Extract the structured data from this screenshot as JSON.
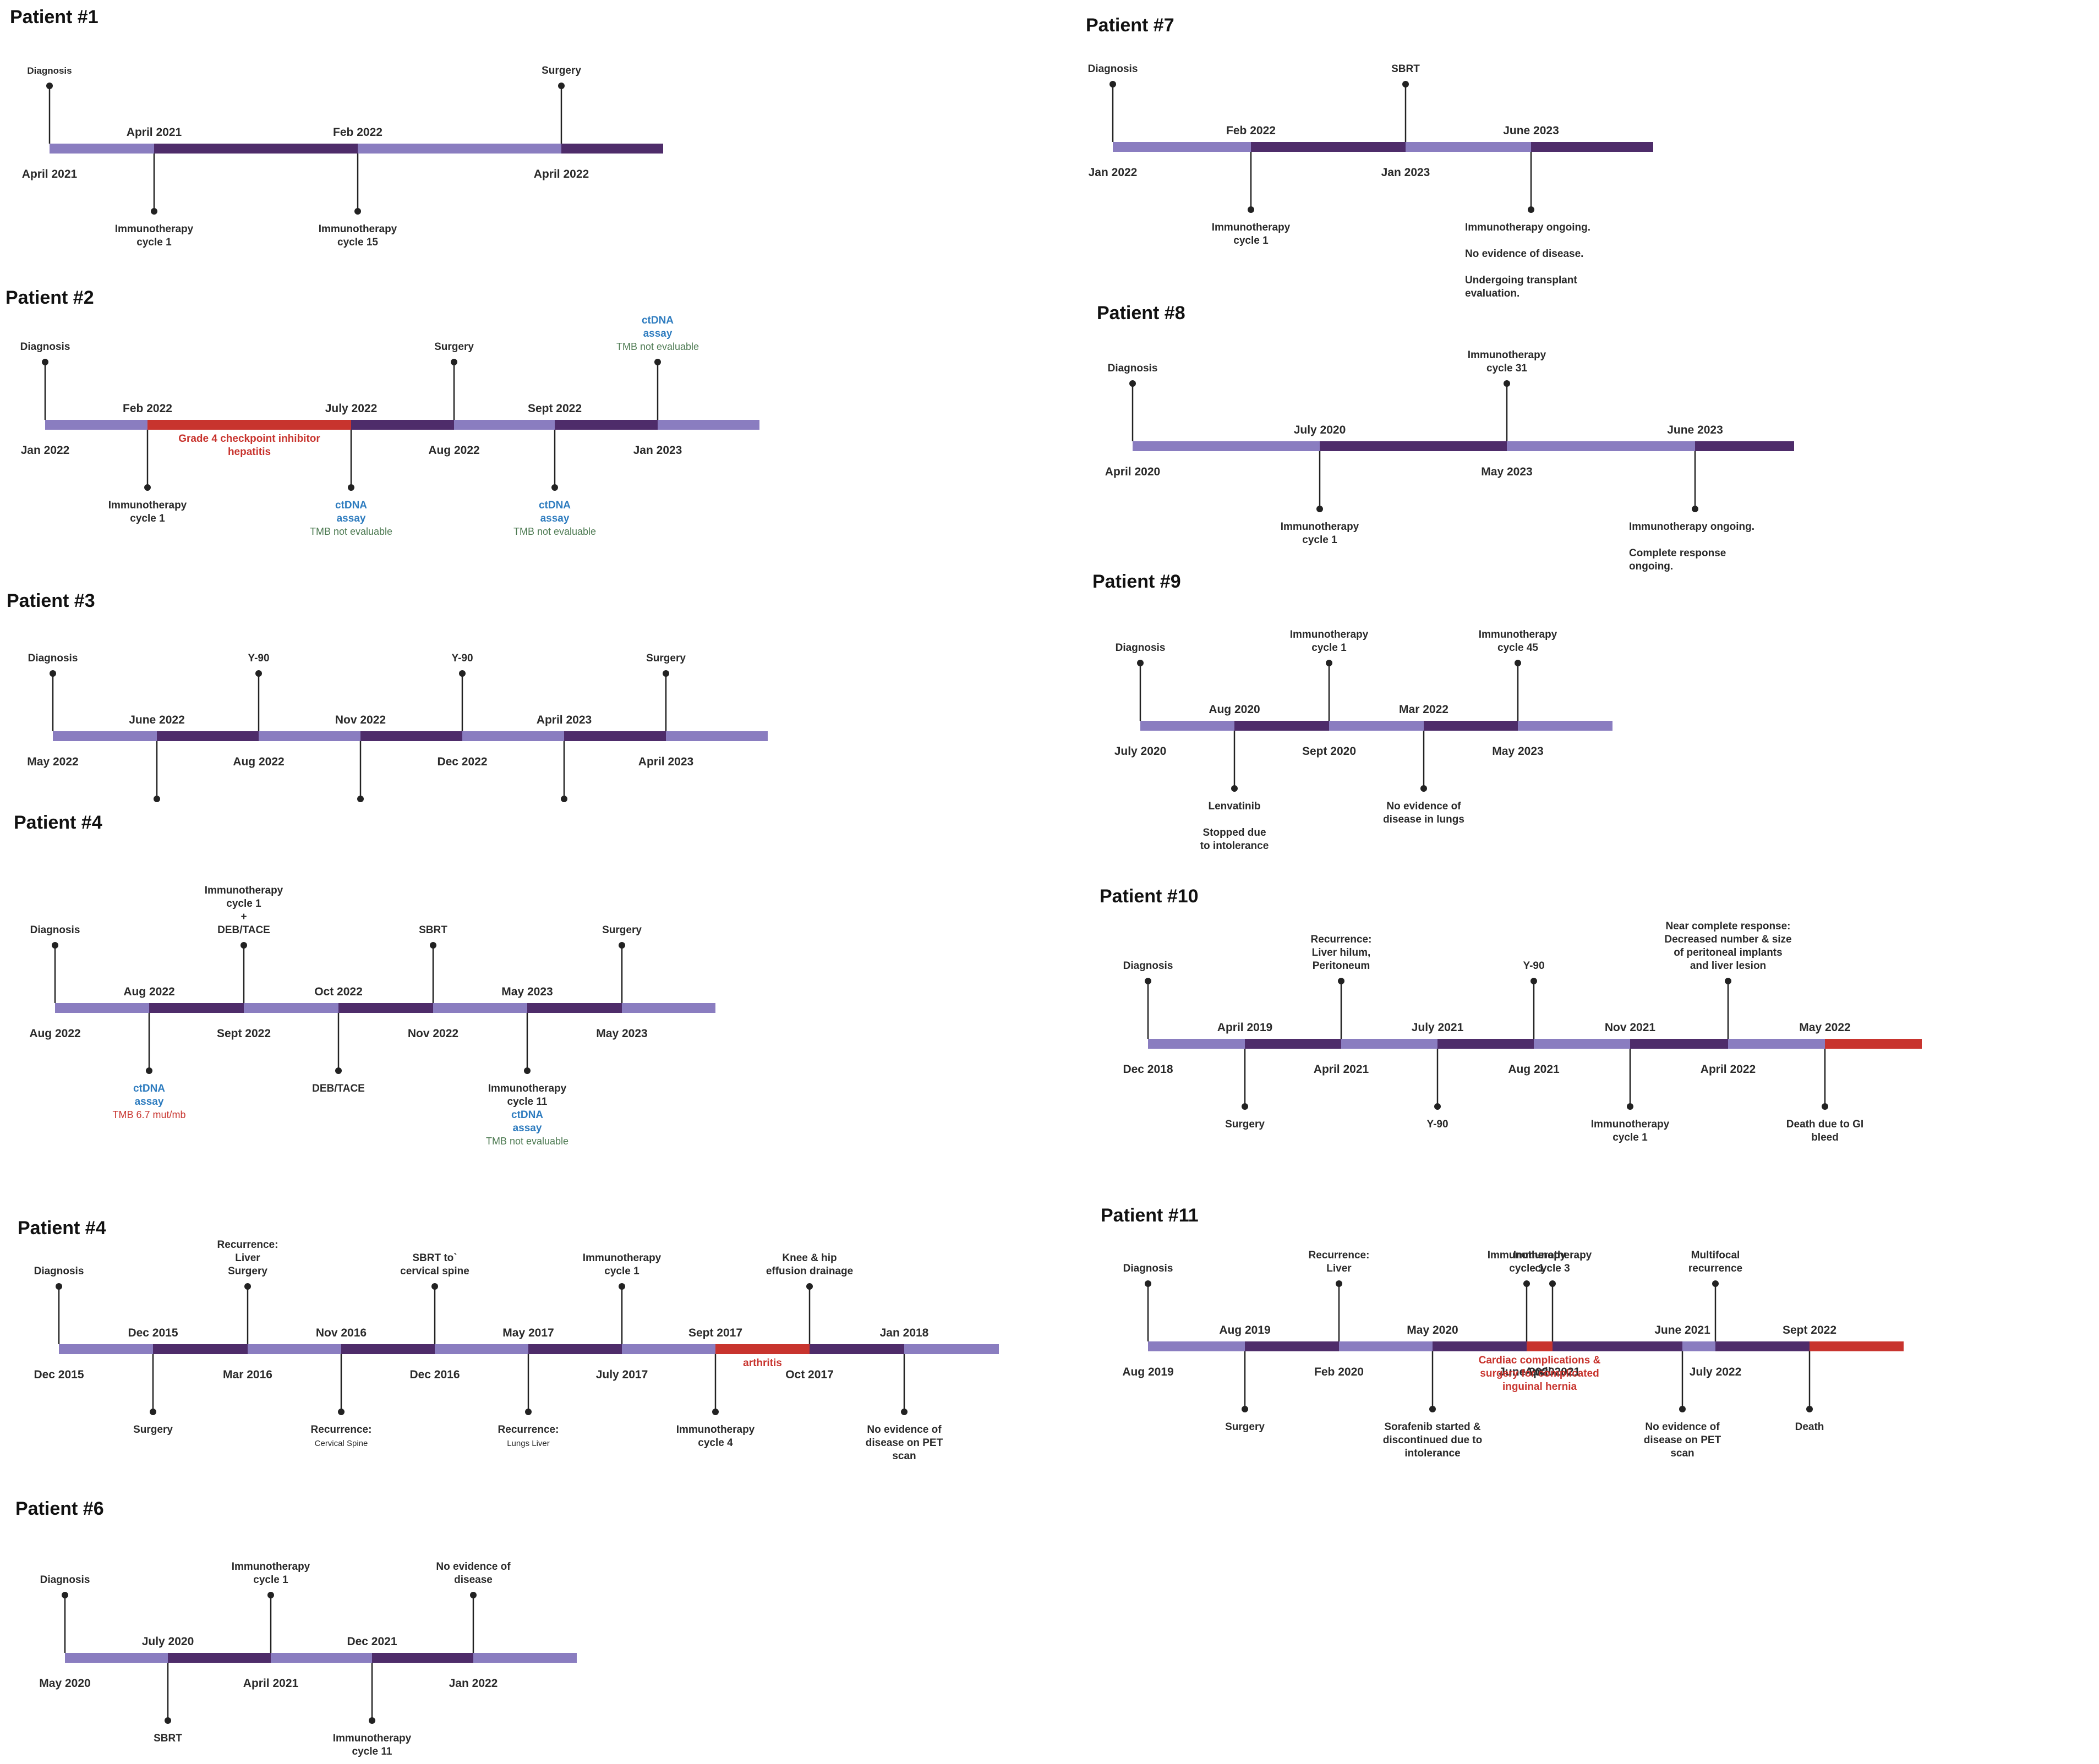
{
  "colors": {
    "bar_light": "#8a7dc0",
    "bar_dark": "#4e2c6a",
    "bar_red": "#c8342e",
    "text": "#2a2a2a",
    "title": "#111111",
    "blue": "#2e7cbf",
    "red": "#c8342e",
    "green": "#4d7a52"
  },
  "patients": [
    {
      "title": "Patient #1",
      "segments": [
        "light",
        "dark",
        "light",
        "dark"
      ],
      "markers": [
        {
          "side": "up",
          "label": [
            "Diagnosis"
          ],
          "small": true
        },
        {
          "side": "down",
          "label": [
            "Immunotherapy",
            "cycle 1"
          ]
        },
        {
          "side": "down",
          "label": [
            "Immunotherapy",
            "cycle 15"
          ]
        },
        {
          "side": "up",
          "label": [
            "Surgery"
          ]
        }
      ],
      "dates": [
        {
          "pos": "below",
          "text": "April 2021"
        },
        {
          "pos": "above",
          "text": "April 2021"
        },
        {
          "pos": "above",
          "text": "Feb 2022"
        },
        {
          "pos": "below",
          "text": "April 2022"
        }
      ],
      "notes": []
    },
    {
      "title": "Patient #2",
      "segments": [
        "light",
        "red",
        "dark",
        "light",
        "dark",
        "light"
      ],
      "markers": [
        {
          "side": "up",
          "label": [
            "Diagnosis"
          ]
        },
        {
          "side": "down",
          "label": [
            "Immunotherapy",
            "cycle 1"
          ]
        },
        {
          "side": "down",
          "label": [
            "ctDNA",
            "assay"
          ],
          "color": "blue",
          "extra": {
            "text": "TMB not evaluable",
            "color": "green"
          }
        },
        {
          "side": "up",
          "label": [
            "Surgery"
          ]
        },
        {
          "side": "down",
          "label": [
            "ctDNA",
            "assay"
          ],
          "color": "blue",
          "extra": {
            "text": "TMB not evaluable",
            "color": "green"
          }
        },
        {
          "side": "up",
          "label": [
            "ctDNA",
            "assay"
          ],
          "color": "blue",
          "extra": {
            "text": "TMB not evaluable",
            "color": "green"
          }
        }
      ],
      "dates": [
        {
          "pos": "below",
          "text": "Jan 2022"
        },
        {
          "pos": "above",
          "text": "Feb 2022"
        },
        {
          "pos": "above",
          "text": "July 2022"
        },
        {
          "pos": "below",
          "text": "Aug 2022"
        },
        {
          "pos": "above",
          "text": "Sept 2022"
        },
        {
          "pos": "below",
          "text": "Jan 2023"
        }
      ],
      "notes": [
        {
          "seg": 1,
          "lines": [
            "Grade 4 checkpoint inhibitor",
            "hepatitis"
          ],
          "color": "red"
        }
      ]
    },
    {
      "title": "Patient #3",
      "segments": [
        "light",
        "dark",
        "light",
        "dark",
        "light",
        "dark",
        "light"
      ],
      "markers": [
        {
          "side": "up",
          "label": [
            "Diagnosis"
          ]
        },
        {
          "side": "down",
          "label": []
        },
        {
          "side": "up",
          "label": [
            "Y-90"
          ]
        },
        {
          "side": "down",
          "label": []
        },
        {
          "side": "up",
          "label": [
            "Y-90"
          ]
        },
        {
          "side": "down",
          "label": []
        },
        {
          "side": "up",
          "label": [
            "Surgery"
          ]
        }
      ],
      "dates": [
        {
          "pos": "below",
          "text": "May 2022"
        },
        {
          "pos": "above",
          "text": "June 2022"
        },
        {
          "pos": "below",
          "text": "Aug 2022"
        },
        {
          "pos": "above",
          "text": "Nov 2022"
        },
        {
          "pos": "below",
          "text": "Dec 2022"
        },
        {
          "pos": "above",
          "text": "April 2023"
        },
        {
          "pos": "below",
          "text": "April 2023"
        }
      ],
      "notes": []
    },
    {
      "title": "Patient #4",
      "segments": [
        "light",
        "dark",
        "light",
        "dark",
        "light",
        "dark",
        "light"
      ],
      "markers": [
        {
          "side": "up",
          "label": [
            "Diagnosis"
          ]
        },
        {
          "side": "down",
          "label": [
            "ctDNA",
            "assay"
          ],
          "color": "blue",
          "extra": {
            "text": "TMB 6.7 mut/mb",
            "color": "red"
          }
        },
        {
          "side": "up",
          "label": [
            "Immunotherapy",
            "cycle 1",
            "+",
            "DEB/TACE"
          ]
        },
        {
          "side": "down",
          "label": [
            "DEB/TACE"
          ]
        },
        {
          "side": "up",
          "label": [
            "SBRT"
          ]
        },
        {
          "side": "down",
          "label": [
            "Immunotherapy",
            "cycle 11"
          ],
          "sub": {
            "lines": [
              "ctDNA",
              "assay"
            ],
            "color": "blue",
            "extra": {
              "text": "TMB not evaluable",
              "color": "green"
            }
          }
        },
        {
          "side": "up",
          "label": [
            "Surgery"
          ]
        }
      ],
      "dates": [
        {
          "pos": "below",
          "text": "Aug 2022"
        },
        {
          "pos": "above",
          "text": "Aug 2022"
        },
        {
          "pos": "below",
          "text": "Sept 2022"
        },
        {
          "pos": "above",
          "text": "Oct 2022"
        },
        {
          "pos": "below",
          "text": "Nov 2022"
        },
        {
          "pos": "above",
          "text": "May 2023"
        },
        {
          "pos": "below",
          "text": "May 2023"
        }
      ],
      "notes": []
    },
    {
      "title": "Patient #4",
      "segments": [
        "light",
        "dark",
        "light",
        "dark",
        "light",
        "dark",
        "light",
        "red",
        "dark",
        "light"
      ],
      "markers": [
        {
          "side": "up",
          "label": [
            "Diagnosis"
          ]
        },
        {
          "side": "down",
          "label": [
            "Surgery"
          ]
        },
        {
          "side": "up",
          "label": [
            "Recurrence:",
            "Liver",
            "Surgery"
          ]
        },
        {
          "side": "down",
          "label": [
            "Recurrence:"
          ],
          "tiny": [
            "Cervical Spine"
          ]
        },
        {
          "side": "up",
          "label": [
            "SBRT to`",
            "cervical spine"
          ]
        },
        {
          "side": "down",
          "label": [
            "Recurrence:"
          ],
          "tiny": [
            "Lungs          Liver"
          ]
        },
        {
          "side": "up",
          "label": [
            "Immunotherapy",
            "cycle 1"
          ]
        },
        {
          "side": "down",
          "label": [
            "Immunotherapy",
            "cycle 4"
          ]
        },
        {
          "side": "up",
          "label": [
            "Knee & hip",
            "effusion drainage"
          ]
        },
        {
          "side": "down",
          "label": [
            "No evidence of",
            "disease on PET",
            "scan"
          ]
        }
      ],
      "dates": [
        {
          "pos": "below",
          "text": "Dec 2015"
        },
        {
          "pos": "above",
          "text": "Dec 2015"
        },
        {
          "pos": "below",
          "text": "Mar 2016"
        },
        {
          "pos": "above",
          "text": "Nov 2016"
        },
        {
          "pos": "below",
          "text": "Dec 2016"
        },
        {
          "pos": "above",
          "text": "May 2017"
        },
        {
          "pos": "below",
          "text": "July 2017"
        },
        {
          "pos": "above",
          "text": "Sept 2017"
        },
        {
          "pos": "below",
          "text": "Oct 2017"
        },
        {
          "pos": "above",
          "text": "Jan 2018"
        }
      ],
      "notes": [
        {
          "seg": 7,
          "lines": [
            "arthritis"
          ],
          "color": "red"
        }
      ]
    },
    {
      "title": "Patient #6",
      "segments": [
        "light",
        "dark",
        "light",
        "dark",
        "light"
      ],
      "markers": [
        {
          "side": "up",
          "label": [
            "Diagnosis"
          ]
        },
        {
          "side": "down",
          "label": [
            "SBRT"
          ]
        },
        {
          "side": "up",
          "label": [
            "Immunotherapy",
            "cycle 1"
          ]
        },
        {
          "side": "down",
          "label": [
            "Immunotherapy",
            "cycle 11"
          ]
        },
        {
          "side": "up",
          "label": [
            "No evidence of",
            "disease"
          ]
        }
      ],
      "dates": [
        {
          "pos": "below",
          "text": "May 2020"
        },
        {
          "pos": "above",
          "text": "July 2020"
        },
        {
          "pos": "below",
          "text": "April 2021"
        },
        {
          "pos": "above",
          "text": "Dec 2021"
        },
        {
          "pos": "below",
          "text": "Jan 2022"
        }
      ],
      "notes": []
    },
    {
      "title": "Patient #7",
      "segments": [
        "light",
        "dark",
        "light",
        "dark"
      ],
      "markers": [
        {
          "side": "up",
          "label": [
            "Diagnosis"
          ]
        },
        {
          "side": "down",
          "label": [
            "Immunotherapy",
            "cycle 1"
          ]
        },
        {
          "side": "up",
          "label": [
            "SBRT"
          ]
        },
        {
          "side": "down",
          "label": [
            "Immunotherapy ongoing.",
            "",
            "No evidence of disease.",
            "",
            "Undergoing transplant",
            "evaluation."
          ],
          "align": "start"
        }
      ],
      "dates": [
        {
          "pos": "below",
          "text": "Jan 2022"
        },
        {
          "pos": "above",
          "text": "Feb 2022"
        },
        {
          "pos": "below",
          "text": "Jan 2023"
        },
        {
          "pos": "above",
          "text": "June 2023"
        }
      ],
      "notes": []
    },
    {
      "title": "Patient #8",
      "segments": [
        "light",
        "dark",
        "light",
        "dark"
      ],
      "markers": [
        {
          "side": "up",
          "label": [
            "Diagnosis"
          ]
        },
        {
          "side": "down",
          "label": [
            "Immunotherapy",
            "cycle 1"
          ]
        },
        {
          "side": "up",
          "label": [
            "Immunotherapy",
            "cycle 31"
          ]
        },
        {
          "side": "down",
          "label": [
            "Immunotherapy ongoing.",
            "",
            "Complete response",
            "ongoing."
          ],
          "align": "start"
        }
      ],
      "dates": [
        {
          "pos": "below",
          "text": "April 2020"
        },
        {
          "pos": "above",
          "text": "July 2020"
        },
        {
          "pos": "below",
          "text": "May 2023"
        },
        {
          "pos": "above",
          "text": "June 2023"
        }
      ],
      "notes": []
    },
    {
      "title": "Patient #9",
      "segments": [
        "light",
        "dark",
        "light",
        "dark",
        "light"
      ],
      "markers": [
        {
          "side": "up",
          "label": [
            "Diagnosis"
          ]
        },
        {
          "side": "down",
          "label": [
            "Lenvatinib",
            "",
            "Stopped due",
            "to intolerance"
          ]
        },
        {
          "side": "up",
          "label": [
            "Immunotherapy",
            "cycle 1"
          ]
        },
        {
          "side": "down",
          "label": [
            "No evidence of",
            "disease in lungs"
          ]
        },
        {
          "side": "up",
          "label": [
            "Immunotherapy",
            "cycle 45"
          ]
        }
      ],
      "dates": [
        {
          "pos": "below",
          "text": "July 2020"
        },
        {
          "pos": "above",
          "text": "Aug 2020"
        },
        {
          "pos": "below",
          "text": "Sept 2020"
        },
        {
          "pos": "above",
          "text": "Mar 2022"
        },
        {
          "pos": "below",
          "text": "May 2023"
        }
      ],
      "notes": []
    },
    {
      "title": "Patient #10",
      "segments": [
        "light",
        "dark",
        "light",
        "dark",
        "light",
        "dark",
        "light",
        "red"
      ],
      "markers": [
        {
          "side": "up",
          "label": [
            "Diagnosis"
          ]
        },
        {
          "side": "down",
          "label": [
            "Surgery"
          ]
        },
        {
          "side": "up",
          "label": [
            "Recurrence:",
            "Liver hilum,",
            "Peritoneum"
          ]
        },
        {
          "side": "down",
          "label": [
            "Y-90"
          ]
        },
        {
          "side": "up",
          "label": [
            "Y-90"
          ]
        },
        {
          "side": "down",
          "label": [
            "Immunotherapy",
            "cycle 1"
          ]
        },
        {
          "side": "up",
          "label": [
            "Near complete response:",
            "Decreased number & size",
            "of peritoneal implants",
            "and liver lesion"
          ]
        },
        {
          "side": "down",
          "label": [
            "Death due to GI",
            "bleed"
          ]
        }
      ],
      "dates": [
        {
          "pos": "below",
          "text": "Dec 2018"
        },
        {
          "pos": "above",
          "text": "April 2019"
        },
        {
          "pos": "below",
          "text": "April 2021"
        },
        {
          "pos": "above",
          "text": "July 2021"
        },
        {
          "pos": "below",
          "text": "Aug 2021"
        },
        {
          "pos": "above",
          "text": "Nov 2021"
        },
        {
          "pos": "below",
          "text": "April 2022"
        },
        {
          "pos": "above",
          "text": "May 2022"
        }
      ],
      "notes": []
    },
    {
      "title": "Patient #11",
      "segments": [
        "light",
        "dark",
        "light",
        "dark",
        "red",
        "dark",
        "light",
        "dark",
        "red"
      ],
      "markers": [
        {
          "side": "up",
          "label": [
            "Diagnosis"
          ]
        },
        {
          "side": "down",
          "label": [
            "Surgery"
          ]
        },
        {
          "side": "up",
          "label": [
            "Recurrence:",
            "Liver"
          ]
        },
        {
          "side": "down",
          "label": [
            "Sorafenib started &",
            "discontinued due to",
            "intolerance"
          ]
        },
        {
          "side": "up",
          "label": [
            "Immunotherapy",
            "cycle 1"
          ]
        },
        {
          "side": "up",
          "label": [
            "Immunotherapy",
            "cycle 3"
          ]
        },
        {
          "side": "down",
          "label": [
            "No evidence of",
            "disease on PET",
            "scan"
          ]
        },
        {
          "side": "up",
          "label": [
            "Multifocal",
            "recurrence"
          ]
        },
        {
          "side": "down",
          "label": [
            "Death"
          ]
        }
      ],
      "dates": [
        {
          "pos": "below",
          "text": "Aug 2019"
        },
        {
          "pos": "above",
          "text": "Aug 2019"
        },
        {
          "pos": "below",
          "text": "Feb 2020"
        },
        {
          "pos": "above",
          "text": "May 2020"
        },
        {
          "pos": "below",
          "text": "June 2020"
        },
        {
          "pos": "below",
          "text": "April 2021"
        },
        {
          "pos": "above",
          "text": "June 2021"
        },
        {
          "pos": "below",
          "text": "July 2022"
        },
        {
          "pos": "above",
          "text": "Sept 2022"
        }
      ],
      "notes": [
        {
          "seg": 4,
          "lines": [
            "Cardiac complications &",
            "surgery for complicated",
            "inguinal hernia"
          ],
          "color": "red"
        }
      ]
    }
  ]
}
